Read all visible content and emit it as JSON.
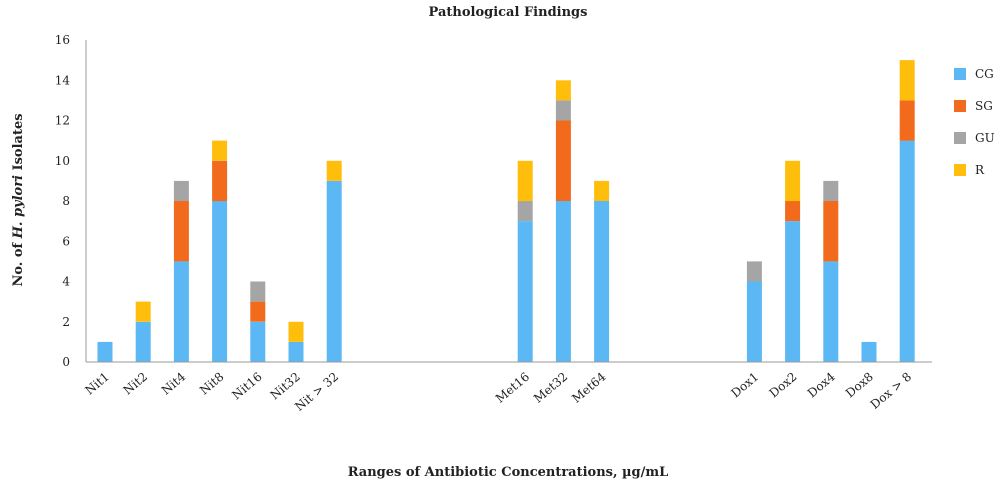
{
  "chart_data": {
    "type": "bar",
    "stacked": true,
    "title": "Pathological Findings",
    "xlabel": "Ranges of Antibiotic Concentrations, µg/mL",
    "ylabel_prefix": "No. of ",
    "ylabel_italic": "H. pylori",
    "ylabel_suffix": " Isolates",
    "ylim": [
      0,
      16
    ],
    "yticks": [
      0,
      2,
      4,
      6,
      8,
      10,
      12,
      14,
      16
    ],
    "grid": false,
    "legend_position": "right",
    "categories": [
      "Nit1",
      "Nit2",
      "Nit4",
      "Nit8",
      "Nit16",
      "Nit32",
      "Nit > 32",
      "",
      "",
      "",
      "",
      "Met16",
      "Met32",
      "Met64",
      "",
      "",
      "",
      "Dox1",
      "Dox2",
      "Dox4",
      "Dox8",
      "Dox > 8"
    ],
    "series": [
      {
        "name": "CG",
        "color": "#5BB8F5",
        "values": [
          1,
          2,
          5,
          8,
          2,
          1,
          9,
          0,
          0,
          0,
          0,
          7,
          8,
          8,
          0,
          0,
          0,
          4,
          7,
          5,
          1,
          11
        ]
      },
      {
        "name": "SG",
        "color": "#F26A1B",
        "values": [
          0,
          0,
          3,
          2,
          1,
          0,
          0,
          0,
          0,
          0,
          0,
          0,
          4,
          0,
          0,
          0,
          0,
          0,
          1,
          3,
          0,
          2
        ]
      },
      {
        "name": "GU",
        "color": "#A5A5A5",
        "values": [
          0,
          0,
          1,
          0,
          1,
          0,
          0,
          0,
          0,
          0,
          0,
          1,
          1,
          0,
          0,
          0,
          0,
          1,
          0,
          1,
          0,
          0
        ]
      },
      {
        "name": "R",
        "color": "#FFBE0B",
        "values": [
          0,
          1,
          0,
          1,
          0,
          1,
          1,
          0,
          0,
          0,
          0,
          2,
          1,
          1,
          0,
          0,
          0,
          0,
          2,
          0,
          0,
          2
        ]
      }
    ]
  }
}
